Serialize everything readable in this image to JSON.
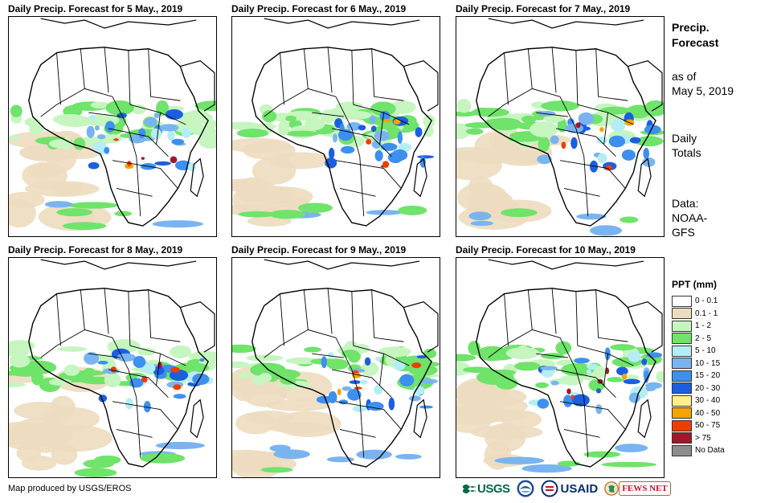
{
  "panels": [
    {
      "title": "Daily Precip. Forecast for 5 May., 2019",
      "date": "5 May., 2019"
    },
    {
      "title": "Daily Precip. Forecast for 6 May., 2019",
      "date": "6 May., 2019"
    },
    {
      "title": "Daily Precip. Forecast for 7 May., 2019",
      "date": "7 May., 2019"
    },
    {
      "title": "Daily Precip. Forecast for 8 May., 2019",
      "date": "8 May., 2019"
    },
    {
      "title": "Daily Precip. Forecast for 9 May., 2019",
      "date": "9 May., 2019"
    },
    {
      "title": "Daily Precip. Forecast for 10 May., 2019",
      "date": "10 May., 2019"
    }
  ],
  "sidebar": {
    "heading_line1": "Precip.",
    "heading_line2": "Forecast",
    "as_of_line1": "as of",
    "as_of_line2": "May 5, 2019",
    "totals_line1": "Daily",
    "totals_line2": "Totals",
    "data_line1": "Data:",
    "data_line2": "NOAA-",
    "data_line3": "GFS"
  },
  "legend": {
    "title": "PPT (mm)",
    "items": [
      {
        "label": "0 - 0.1",
        "color": "#ffffff"
      },
      {
        "label": "0.1 - 1",
        "color": "#ecdcbf"
      },
      {
        "label": "1 - 2",
        "color": "#c6f5c0"
      },
      {
        "label": "2 - 5",
        "color": "#6fe36a"
      },
      {
        "label": "5 - 10",
        "color": "#b4eef4"
      },
      {
        "label": "10 - 15",
        "color": "#7ab4f0"
      },
      {
        "label": "15 - 20",
        "color": "#3d8ff0"
      },
      {
        "label": "20 - 30",
        "color": "#1b5fe0"
      },
      {
        "label": "30 - 40",
        "color": "#fff08a"
      },
      {
        "label": "40 - 50",
        "color": "#f5a300"
      },
      {
        "label": "50 - 75",
        "color": "#f03c00"
      },
      {
        "label": "> 75",
        "color": "#a0182a"
      },
      {
        "label": "No Data",
        "color": "#8c8c8c"
      }
    ]
  },
  "footer": {
    "credit": "Map produced by USGS/EROS"
  },
  "logos": {
    "usgs": "USGS",
    "usaid": "USAID",
    "fews": "FEWS NET"
  }
}
